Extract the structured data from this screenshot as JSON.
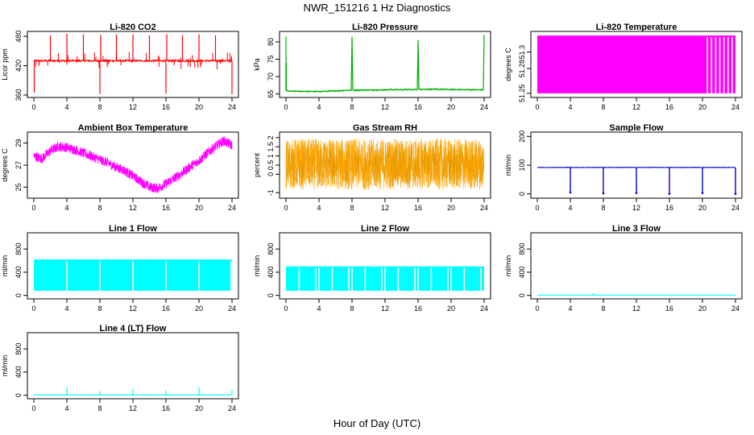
{
  "figure": {
    "title": "NWR_151216  1 Hz Diagnostics",
    "xlabel": "Hour of Day (UTC)"
  },
  "chart_data": [
    {
      "type": "line",
      "title": "Li-820 CO2",
      "ylabel": "Licor ppm",
      "color": "#ff0000",
      "xlim": [
        0,
        24
      ],
      "xticks": [
        0,
        4,
        8,
        12,
        16,
        20,
        24
      ],
      "ylim": [
        355,
        490
      ],
      "yticks": [
        360,
        420,
        480
      ],
      "baseline": 430,
      "spikes": [
        {
          "x": 0.05,
          "y": 365
        },
        {
          "x": 2.0,
          "y": 482
        },
        {
          "x": 4.0,
          "y": 485
        },
        {
          "x": 6.0,
          "y": 484
        },
        {
          "x": 8.0,
          "y": 362
        },
        {
          "x": 8.1,
          "y": 483
        },
        {
          "x": 10.0,
          "y": 484
        },
        {
          "x": 12.0,
          "y": 484
        },
        {
          "x": 14.0,
          "y": 482
        },
        {
          "x": 16.0,
          "y": 363
        },
        {
          "x": 16.1,
          "y": 484
        },
        {
          "x": 18.0,
          "y": 482
        },
        {
          "x": 20.0,
          "y": 484
        },
        {
          "x": 22.0,
          "y": 482
        },
        {
          "x": 24.0,
          "y": 362
        }
      ]
    },
    {
      "type": "line",
      "title": "Li-820 Pressure",
      "ylabel": "kPa",
      "color": "#00b000",
      "xlim": [
        0,
        24
      ],
      "xticks": [
        0,
        4,
        8,
        12,
        16,
        20,
        24
      ],
      "ylim": [
        64,
        83
      ],
      "yticks": [
        65,
        70,
        75,
        80
      ],
      "x": [
        0,
        0.3,
        4,
        7.9,
        8.0,
        8.1,
        12,
        15.9,
        16.0,
        16.1,
        20,
        23.9,
        24.0
      ],
      "y": [
        66,
        65.8,
        65.7,
        66.1,
        81.5,
        66.1,
        66.2,
        66.3,
        80.5,
        66.4,
        66.3,
        66.2,
        82
      ],
      "spikes": [
        {
          "x": 0.0,
          "y": 81.5
        },
        {
          "x": 0.05,
          "y": 74
        }
      ]
    },
    {
      "type": "area",
      "title": "Li-820 Temperature",
      "ylabel": "degrees C",
      "color": "#ff00ff",
      "xlim": [
        0,
        24
      ],
      "xticks": [
        0,
        4,
        8,
        12,
        16,
        20,
        24
      ],
      "ylim": [
        51.245,
        51.325
      ],
      "yticks": [
        51.25,
        51.28,
        51.3
      ],
      "low": 51.25,
      "high": 51.32,
      "gaps": [
        20.6,
        21.1,
        21.6,
        22.1,
        22.6,
        23.1,
        23.6
      ]
    },
    {
      "type": "line",
      "title": "Ambient Box Temperature",
      "ylabel": "degrees C",
      "color": "#ff00ff",
      "xlim": [
        0,
        24
      ],
      "xticks": [
        0,
        4,
        8,
        12,
        16,
        20,
        24
      ],
      "ylim": [
        24.0,
        30.0
      ],
      "yticks": [
        25,
        27,
        29
      ],
      "x": [
        0,
        1,
        2,
        3,
        4,
        5,
        6,
        7,
        8,
        9,
        10,
        11,
        12,
        13,
        14,
        15,
        16,
        17,
        18,
        19,
        20,
        21,
        22,
        23,
        24
      ],
      "y": [
        27.8,
        27.6,
        28.3,
        28.7,
        28.6,
        28.4,
        28.1,
        27.8,
        27.5,
        27.2,
        26.8,
        26.5,
        26.0,
        25.5,
        25.0,
        24.9,
        25.3,
        25.8,
        26.3,
        26.9,
        27.4,
        28.1,
        28.7,
        29.2,
        28.8
      ],
      "noise": 0.45
    },
    {
      "type": "line",
      "title": "Gas Stream RH",
      "ylabel": "percent",
      "color": "#ffa500",
      "xlim": [
        0,
        24
      ],
      "xticks": [
        0,
        4,
        8,
        12,
        16,
        20,
        24
      ],
      "ylim": [
        -1.3,
        2.3
      ],
      "yticks": [
        -1.0,
        0.0,
        0.5,
        1.0,
        1.5,
        2.0
      ],
      "center": 0.55,
      "amplitude": 1.4
    },
    {
      "type": "line",
      "title": "Sample Flow",
      "ylabel": "ml/min",
      "color": "#0000dd",
      "xlim": [
        0,
        24
      ],
      "xticks": [
        0,
        4,
        8,
        12,
        16,
        20,
        24
      ],
      "ylim": [
        -15,
        215
      ],
      "yticks": [
        0,
        100,
        200
      ],
      "baseline": 92,
      "dips": [
        {
          "x": 4.0,
          "y": 5
        },
        {
          "x": 8.0,
          "y": 2
        },
        {
          "x": 12.0,
          "y": 3
        },
        {
          "x": 16.0,
          "y": 0
        },
        {
          "x": 20.0,
          "y": 3
        },
        {
          "x": 24.0,
          "y": 0
        }
      ]
    },
    {
      "type": "area",
      "title": "Line 1 Flow",
      "ylabel": "ml/min",
      "color": "#00ffff",
      "xlim": [
        0,
        24
      ],
      "xticks": [
        0,
        4,
        8,
        12,
        16,
        20,
        24
      ],
      "ylim": [
        -60,
        1080
      ],
      "yticks": [
        0,
        400,
        800
      ],
      "low": 80,
      "high": 620,
      "gaps": [
        4.0,
        8.0,
        12.0,
        16.0,
        20.0,
        23.9
      ]
    },
    {
      "type": "area",
      "title": "Line 2 Flow",
      "ylabel": "ml/min",
      "color": "#00ffff",
      "xlim": [
        0,
        24
      ],
      "xticks": [
        0,
        4,
        8,
        12,
        16,
        20,
        24
      ],
      "ylim": [
        -60,
        1080
      ],
      "yticks": [
        0,
        400,
        800
      ],
      "low": 80,
      "high": 500,
      "gaps": [
        1.6,
        3.6,
        4.0,
        5.6,
        7.6,
        8.0,
        9.6,
        11.6,
        12.0,
        13.6,
        15.6,
        16.0,
        17.6,
        19.6,
        20.0,
        21.6,
        23.6
      ]
    },
    {
      "type": "line",
      "title": "Line 3 Flow",
      "ylabel": "ml/min",
      "color": "#00ffff",
      "xlim": [
        0,
        24
      ],
      "xticks": [
        0,
        4,
        8,
        12,
        16,
        20,
        24
      ],
      "ylim": [
        -60,
        1080
      ],
      "yticks": [
        0,
        400,
        800
      ],
      "x": [
        0,
        6.7,
        6.8,
        6.9,
        24
      ],
      "y": [
        5,
        5,
        30,
        5,
        5
      ]
    },
    {
      "type": "line",
      "title": "Line 4 (LT) Flow",
      "ylabel": "ml/min",
      "color": "#00ffff",
      "xlim": [
        0,
        24
      ],
      "xticks": [
        0,
        4,
        8,
        12,
        16,
        20,
        24
      ],
      "ylim": [
        -60,
        1080
      ],
      "yticks": [
        0,
        400,
        800
      ],
      "baseline": 5,
      "spikes": [
        {
          "x": 4.0,
          "y": 140
        },
        {
          "x": 8.0,
          "y": 70
        },
        {
          "x": 12.0,
          "y": 110
        },
        {
          "x": 16.0,
          "y": 80
        },
        {
          "x": 20.0,
          "y": 140
        },
        {
          "x": 24.0,
          "y": 90
        }
      ]
    }
  ]
}
